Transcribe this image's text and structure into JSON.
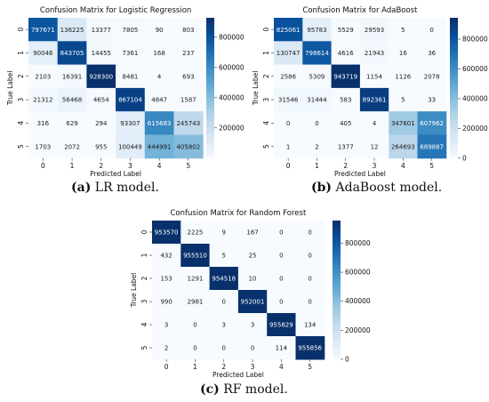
{
  "captions": [
    {
      "letter": "(a)",
      "text": " LR model."
    },
    {
      "letter": "(b)",
      "text": " AdaBoost model."
    },
    {
      "letter": "(c)",
      "text": " RF model."
    }
  ],
  "chart_data": [
    {
      "type": "heatmap",
      "title": "Confusion Matrix for Logistic Regression",
      "xlabel": "Predicted Label",
      "ylabel": "True Label",
      "x_ticks": [
        "0",
        "1",
        "2",
        "3",
        "4",
        "5"
      ],
      "y_ticks": [
        "0",
        "1",
        "2",
        "3",
        "4",
        "5"
      ],
      "colormap": "Blues",
      "vmin": 0,
      "vmax": 928300,
      "colorbar_ticks": [
        200000,
        400000,
        600000,
        800000
      ],
      "colorbar_labels": [
        "200000",
        "400000",
        "600000",
        "800000"
      ],
      "matrix": [
        [
          797671,
          136225,
          13377,
          7805,
          90,
          803
        ],
        [
          90046,
          843705,
          14455,
          7361,
          168,
          237
        ],
        [
          2103,
          16391,
          928300,
          8481,
          4,
          693
        ],
        [
          21312,
          56468,
          4654,
          867104,
          4847,
          1587
        ],
        [
          316,
          629,
          294,
          93307,
          615683,
          245743
        ],
        [
          1703,
          2072,
          955,
          100449,
          444991,
          405802
        ]
      ]
    },
    {
      "type": "heatmap",
      "title": "Confusion Matrix for AdaBoost",
      "xlabel": "Predicted Label",
      "ylabel": "True Label",
      "x_ticks": [
        "0",
        "1",
        "2",
        "3",
        "4",
        "5"
      ],
      "y_ticks": [
        "0",
        "1",
        "2",
        "3",
        "4",
        "5"
      ],
      "colormap": "Blues",
      "vmin": 0,
      "vmax": 943719,
      "colorbar_ticks": [
        0,
        200000,
        400000,
        600000,
        800000
      ],
      "colorbar_labels": [
        "0",
        "200000",
        "400000",
        "600000",
        "800000"
      ],
      "matrix": [
        [
          825061,
          95783,
          5529,
          29593,
          5,
          0
        ],
        [
          130747,
          798614,
          4616,
          21943,
          16,
          36
        ],
        [
          2586,
          5309,
          943719,
          1154,
          1126,
          2078
        ],
        [
          31546,
          31444,
          583,
          892361,
          5,
          33
        ],
        [
          0,
          0,
          405,
          4,
          347601,
          607962
        ],
        [
          1,
          2,
          1377,
          12,
          264693,
          689887
        ]
      ]
    },
    {
      "type": "heatmap",
      "title": "Confusion Matrix for Random Forest",
      "xlabel": "Predicted Label",
      "ylabel": "True Label",
      "x_ticks": [
        "0",
        "1",
        "2",
        "3",
        "4",
        "5"
      ],
      "y_ticks": [
        "0",
        "1",
        "2",
        "3",
        "4",
        "5"
      ],
      "colormap": "Blues",
      "vmin": 0,
      "vmax": 955856,
      "colorbar_ticks": [
        0,
        200000,
        400000,
        600000,
        800000
      ],
      "colorbar_labels": [
        "0",
        "200000",
        "400000",
        "600000",
        "800000"
      ],
      "matrix": [
        [
          953570,
          2225,
          9,
          167,
          0,
          0
        ],
        [
          432,
          955510,
          5,
          25,
          0,
          0
        ],
        [
          153,
          1291,
          954518,
          10,
          0,
          0
        ],
        [
          990,
          2981,
          0,
          952001,
          0,
          0
        ],
        [
          3,
          0,
          3,
          3,
          955829,
          134
        ],
        [
          2,
          0,
          0,
          0,
          114,
          955856
        ]
      ]
    }
  ]
}
